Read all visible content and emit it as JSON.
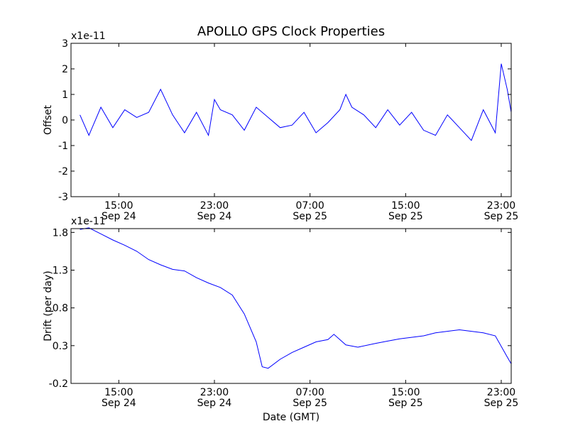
{
  "title": "APOLLO GPS Clock Properties",
  "xlabel": "Date (GMT)",
  "colors": {
    "line": "#0000ff",
    "axes": "#000000",
    "background": "#ffffff"
  },
  "chart_data": [
    {
      "type": "line",
      "ylabel": "Offset",
      "exponent_label": "x1e-11",
      "ylim": [
        -3,
        3
      ],
      "yticks": [
        "-3",
        "-2",
        "-1",
        "0",
        "1",
        "2",
        "3"
      ],
      "xticks": [
        {
          "time": "15:00",
          "date": "Sep 24"
        },
        {
          "time": "23:00",
          "date": "Sep 24"
        },
        {
          "time": "07:00",
          "date": "Sep 25"
        },
        {
          "time": "15:00",
          "date": "Sep 25"
        },
        {
          "time": "23:00",
          "date": "Sep 25"
        }
      ],
      "x": [
        "Sep 24 11:45",
        "Sep 24 12:30",
        "Sep 24 13:30",
        "Sep 24 14:30",
        "Sep 24 15:30",
        "Sep 24 16:30",
        "Sep 24 17:30",
        "Sep 24 18:30",
        "Sep 24 19:30",
        "Sep 24 20:30",
        "Sep 24 21:30",
        "Sep 24 22:30",
        "Sep 24 23:00",
        "Sep 24 23:30",
        "Sep 25 00:30",
        "Sep 25 01:30",
        "Sep 25 02:30",
        "Sep 25 03:30",
        "Sep 25 04:30",
        "Sep 25 05:30",
        "Sep 25 06:30",
        "Sep 25 07:30",
        "Sep 25 08:30",
        "Sep 25 09:30",
        "Sep 25 10:00",
        "Sep 25 10:30",
        "Sep 25 11:30",
        "Sep 25 12:30",
        "Sep 25 13:30",
        "Sep 25 14:30",
        "Sep 25 15:30",
        "Sep 25 16:30",
        "Sep 25 17:30",
        "Sep 25 18:30",
        "Sep 25 19:30",
        "Sep 25 20:30",
        "Sep 25 21:30",
        "Sep 25 22:30",
        "Sep 25 23:00",
        "Sep 25 23:30",
        "Sep 25 23:50"
      ],
      "values": [
        0.2,
        -0.6,
        0.5,
        -0.3,
        0.4,
        0.1,
        0.3,
        1.2,
        0.2,
        -0.5,
        0.3,
        -0.6,
        0.8,
        0.4,
        0.2,
        -0.4,
        0.5,
        0.1,
        -0.3,
        -0.2,
        0.3,
        -0.5,
        -0.1,
        0.4,
        1.0,
        0.5,
        0.2,
        -0.3,
        0.4,
        -0.2,
        0.3,
        -0.4,
        -0.6,
        0.2,
        -0.3,
        -0.8,
        0.4,
        -0.5,
        2.2,
        1.2,
        0.3
      ]
    },
    {
      "type": "line",
      "ylabel": "Drift (per day)",
      "exponent_label": "x1e-11",
      "ylim": [
        -0.2,
        1.85
      ],
      "yticks": [
        "-0.2",
        "0.3",
        "0.8",
        "1.3",
        "1.8"
      ],
      "xticks": [
        {
          "time": "15:00",
          "date": "Sep 24"
        },
        {
          "time": "23:00",
          "date": "Sep 24"
        },
        {
          "time": "07:00",
          "date": "Sep 25"
        },
        {
          "time": "15:00",
          "date": "Sep 25"
        },
        {
          "time": "23:00",
          "date": "Sep 25"
        }
      ],
      "x": [
        "Sep 24 11:45",
        "Sep 24 12:30",
        "Sep 24 13:30",
        "Sep 24 14:30",
        "Sep 24 15:30",
        "Sep 24 16:30",
        "Sep 24 17:30",
        "Sep 24 18:30",
        "Sep 24 19:30",
        "Sep 24 20:30",
        "Sep 24 21:30",
        "Sep 24 22:30",
        "Sep 24 23:30",
        "Sep 25 00:30",
        "Sep 25 01:30",
        "Sep 25 02:30",
        "Sep 25 03:00",
        "Sep 25 03:30",
        "Sep 25 04:30",
        "Sep 25 05:30",
        "Sep 25 06:30",
        "Sep 25 07:30",
        "Sep 25 08:30",
        "Sep 25 09:00",
        "Sep 25 10:00",
        "Sep 25 11:00",
        "Sep 25 12:30",
        "Sep 25 13:30",
        "Sep 25 14:30",
        "Sep 25 15:30",
        "Sep 25 16:30",
        "Sep 25 17:30",
        "Sep 25 18:30",
        "Sep 25 19:30",
        "Sep 25 20:30",
        "Sep 25 21:30",
        "Sep 25 22:30",
        "Sep 25 23:30",
        "Sep 25 23:50"
      ],
      "values": [
        1.84,
        1.86,
        1.78,
        1.7,
        1.63,
        1.55,
        1.44,
        1.37,
        1.31,
        1.29,
        1.2,
        1.13,
        1.07,
        0.97,
        0.72,
        0.35,
        0.02,
        0.0,
        0.12,
        0.21,
        0.28,
        0.35,
        0.38,
        0.45,
        0.31,
        0.28,
        0.33,
        0.36,
        0.39,
        0.41,
        0.43,
        0.47,
        0.49,
        0.51,
        0.49,
        0.47,
        0.43,
        0.15,
        0.06
      ]
    }
  ]
}
